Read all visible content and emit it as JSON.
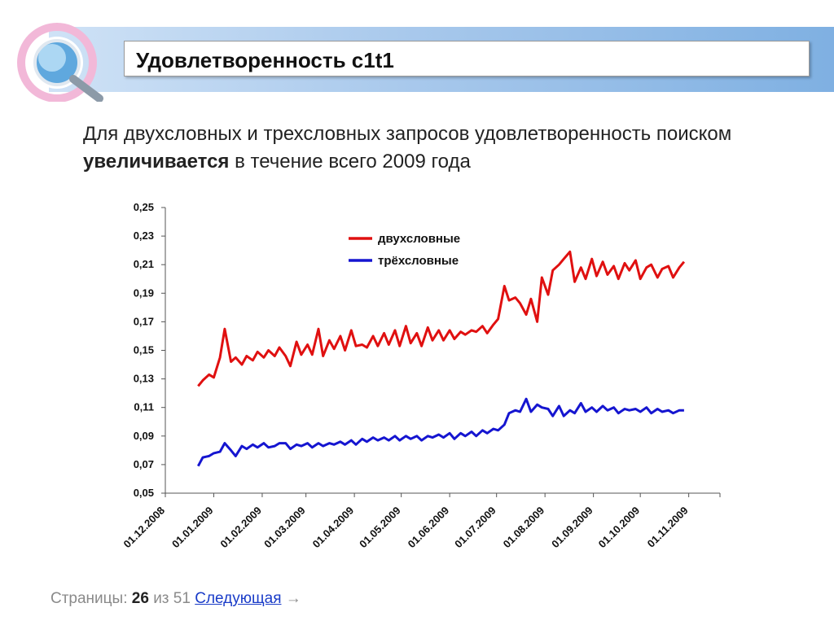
{
  "slide": {
    "title": "Удовлетворенность с1t1",
    "subtitle_part1": "Для двухсловных и трехсловных запросов удовлетворенность поиском ",
    "subtitle_bold": "увеличивается",
    "subtitle_part2": " в течение всего 2009 года"
  },
  "footer": {
    "pages_label": "Страницы:",
    "current_page": "26",
    "of_label": "из 51",
    "next_label": "Следующая",
    "arrow": "→"
  },
  "colors": {
    "two_word": "#e01010",
    "three_word": "#1515d0",
    "banner": "#7fb0e2"
  },
  "chart_data": {
    "type": "line",
    "y_ticks": [
      "0,25",
      "0,23",
      "0,21",
      "0,19",
      "0,17",
      "0,15",
      "0,13",
      "0,11",
      "0,09",
      "0,07",
      "0,05"
    ],
    "ylim": [
      0.05,
      0.25
    ],
    "x_ticks": [
      "01.12.2008",
      "01.01.2009",
      "01.02.2009",
      "01.03.2009",
      "01.04.2009",
      "01.05.2009",
      "01.06.2009",
      "01.07.2009",
      "01.08.2009",
      "01.09.2009",
      "01.10.2009",
      "01.11.2009"
    ],
    "legend_position": "top-center",
    "series": [
      {
        "name": "двухсловные",
        "x": [
          "2008-12-22",
          "2008-12-25",
          "2008-12-29",
          "2009-01-01",
          "2009-01-05",
          "2009-01-08",
          "2009-01-12",
          "2009-01-15",
          "2009-01-19",
          "2009-01-22",
          "2009-01-26",
          "2009-01-29",
          "2009-02-02",
          "2009-02-05",
          "2009-02-09",
          "2009-02-12",
          "2009-02-16",
          "2009-02-19",
          "2009-02-23",
          "2009-02-26",
          "2009-03-02",
          "2009-03-05",
          "2009-03-09",
          "2009-03-12",
          "2009-03-16",
          "2009-03-19",
          "2009-03-23",
          "2009-03-26",
          "2009-03-30",
          "2009-04-02",
          "2009-04-06",
          "2009-04-09",
          "2009-04-13",
          "2009-04-16",
          "2009-04-20",
          "2009-04-23",
          "2009-04-27",
          "2009-04-30",
          "2009-05-04",
          "2009-05-07",
          "2009-05-11",
          "2009-05-14",
          "2009-05-18",
          "2009-05-21",
          "2009-05-25",
          "2009-05-28",
          "2009-06-01",
          "2009-06-04",
          "2009-06-08",
          "2009-06-11",
          "2009-06-15",
          "2009-06-18",
          "2009-06-22",
          "2009-06-25",
          "2009-06-29",
          "2009-07-02",
          "2009-07-06",
          "2009-07-09",
          "2009-07-13",
          "2009-07-16",
          "2009-07-20",
          "2009-07-23",
          "2009-07-27",
          "2009-07-30",
          "2009-08-03",
          "2009-08-06",
          "2009-08-10",
          "2009-08-13",
          "2009-08-17",
          "2009-08-20",
          "2009-08-24",
          "2009-08-27",
          "2009-08-31",
          "2009-09-03",
          "2009-09-07",
          "2009-09-10",
          "2009-09-14",
          "2009-09-17",
          "2009-09-21",
          "2009-09-24",
          "2009-09-28",
          "2009-10-01",
          "2009-10-05",
          "2009-10-08",
          "2009-10-12",
          "2009-10-15",
          "2009-10-19",
          "2009-10-22",
          "2009-10-26",
          "2009-10-29"
        ],
        "y": [
          0.125,
          0.129,
          0.133,
          0.131,
          0.145,
          0.165,
          0.142,
          0.145,
          0.14,
          0.146,
          0.143,
          0.149,
          0.145,
          0.15,
          0.146,
          0.152,
          0.146,
          0.139,
          0.156,
          0.147,
          0.154,
          0.147,
          0.165,
          0.146,
          0.157,
          0.151,
          0.16,
          0.15,
          0.164,
          0.153,
          0.154,
          0.152,
          0.16,
          0.153,
          0.162,
          0.154,
          0.164,
          0.153,
          0.167,
          0.155,
          0.162,
          0.153,
          0.166,
          0.157,
          0.164,
          0.157,
          0.164,
          0.158,
          0.163,
          0.161,
          0.164,
          0.163,
          0.167,
          0.162,
          0.168,
          0.172,
          0.195,
          0.185,
          0.187,
          0.183,
          0.175,
          0.186,
          0.17,
          0.201,
          0.189,
          0.206,
          0.21,
          0.214,
          0.219,
          0.198,
          0.208,
          0.2,
          0.214,
          0.202,
          0.212,
          0.203,
          0.209,
          0.2,
          0.211,
          0.206,
          0.213,
          0.2,
          0.208,
          0.21,
          0.201,
          0.207,
          0.209,
          0.201,
          0.208,
          0.212
        ]
      },
      {
        "name": "трёхсловные",
        "x": [
          "2008-12-22",
          "2008-12-25",
          "2008-12-29",
          "2009-01-01",
          "2009-01-05",
          "2009-01-08",
          "2009-01-12",
          "2009-01-15",
          "2009-01-19",
          "2009-01-22",
          "2009-01-26",
          "2009-01-29",
          "2009-02-02",
          "2009-02-05",
          "2009-02-09",
          "2009-02-12",
          "2009-02-16",
          "2009-02-19",
          "2009-02-23",
          "2009-02-26",
          "2009-03-02",
          "2009-03-05",
          "2009-03-09",
          "2009-03-12",
          "2009-03-16",
          "2009-03-19",
          "2009-03-23",
          "2009-03-26",
          "2009-03-30",
          "2009-04-02",
          "2009-04-06",
          "2009-04-09",
          "2009-04-13",
          "2009-04-16",
          "2009-04-20",
          "2009-04-23",
          "2009-04-27",
          "2009-04-30",
          "2009-05-04",
          "2009-05-07",
          "2009-05-11",
          "2009-05-14",
          "2009-05-18",
          "2009-05-21",
          "2009-05-25",
          "2009-05-28",
          "2009-06-01",
          "2009-06-04",
          "2009-06-08",
          "2009-06-11",
          "2009-06-15",
          "2009-06-18",
          "2009-06-22",
          "2009-06-25",
          "2009-06-29",
          "2009-07-02",
          "2009-07-06",
          "2009-07-09",
          "2009-07-13",
          "2009-07-16",
          "2009-07-20",
          "2009-07-23",
          "2009-07-27",
          "2009-07-30",
          "2009-08-03",
          "2009-08-06",
          "2009-08-10",
          "2009-08-13",
          "2009-08-17",
          "2009-08-20",
          "2009-08-24",
          "2009-08-27",
          "2009-08-31",
          "2009-09-03",
          "2009-09-07",
          "2009-09-10",
          "2009-09-14",
          "2009-09-17",
          "2009-09-21",
          "2009-09-24",
          "2009-09-28",
          "2009-10-01",
          "2009-10-05",
          "2009-10-08",
          "2009-10-12",
          "2009-10-15",
          "2009-10-19",
          "2009-10-22",
          "2009-10-26",
          "2009-10-29"
        ],
        "y": [
          0.069,
          0.075,
          0.076,
          0.078,
          0.079,
          0.085,
          0.08,
          0.076,
          0.083,
          0.081,
          0.084,
          0.082,
          0.085,
          0.082,
          0.083,
          0.085,
          0.085,
          0.081,
          0.084,
          0.083,
          0.085,
          0.082,
          0.085,
          0.083,
          0.085,
          0.084,
          0.086,
          0.084,
          0.087,
          0.084,
          0.088,
          0.086,
          0.089,
          0.087,
          0.089,
          0.087,
          0.09,
          0.087,
          0.09,
          0.088,
          0.09,
          0.087,
          0.09,
          0.089,
          0.091,
          0.089,
          0.092,
          0.088,
          0.092,
          0.09,
          0.093,
          0.09,
          0.094,
          0.092,
          0.095,
          0.094,
          0.098,
          0.106,
          0.108,
          0.107,
          0.116,
          0.107,
          0.112,
          0.11,
          0.109,
          0.104,
          0.111,
          0.104,
          0.108,
          0.106,
          0.113,
          0.107,
          0.11,
          0.107,
          0.111,
          0.108,
          0.11,
          0.106,
          0.109,
          0.108,
          0.109,
          0.107,
          0.11,
          0.106,
          0.109,
          0.107,
          0.108,
          0.106,
          0.108,
          0.108
        ]
      }
    ]
  }
}
